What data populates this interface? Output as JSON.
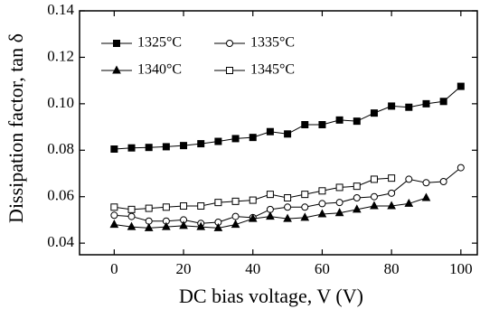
{
  "chart_data": {
    "type": "line",
    "x_label": "DC bias voltage, V (V)",
    "y_label": "Dissipation factor, tan δ",
    "xlim": [
      -10,
      105
    ],
    "xticks": [
      0,
      20,
      40,
      60,
      80,
      100
    ],
    "ylim": [
      0.035,
      0.14
    ],
    "yticks": [
      {
        "value": 0.04,
        "label": "0.04"
      },
      {
        "value": 0.06,
        "label": "0.06"
      },
      {
        "value": 0.08,
        "label": "0.08"
      },
      {
        "value": 0.1,
        "label": "0.10"
      },
      {
        "value": 0.12,
        "label": "0.12"
      },
      {
        "value": 0.14,
        "label": "0.14"
      }
    ],
    "series": [
      {
        "name": "1325°C",
        "color": "#000000",
        "marker": "square-filled",
        "x": [
          0,
          5,
          10,
          15,
          20,
          25,
          30,
          35,
          40,
          45,
          50,
          55,
          60,
          65,
          70,
          75,
          80,
          85,
          90,
          95,
          100
        ],
        "values": [
          0.0805,
          0.081,
          0.0812,
          0.0815,
          0.082,
          0.0828,
          0.0838,
          0.085,
          0.0855,
          0.088,
          0.087,
          0.091,
          0.091,
          0.093,
          0.0925,
          0.096,
          0.099,
          0.0985,
          0.1,
          0.101,
          0.1075
        ]
      },
      {
        "name": "1335°C",
        "color": "#000000",
        "marker": "circle-open",
        "x": [
          0,
          5,
          10,
          15,
          20,
          25,
          30,
          35,
          40,
          45,
          50,
          55,
          60,
          65,
          70,
          75,
          80,
          85,
          90,
          95,
          100
        ],
        "values": [
          0.052,
          0.0515,
          0.0495,
          0.0495,
          0.05,
          0.0485,
          0.049,
          0.0515,
          0.051,
          0.0545,
          0.0555,
          0.0555,
          0.057,
          0.0575,
          0.0595,
          0.06,
          0.0615,
          0.0675,
          0.066,
          0.0665,
          0.0725
        ]
      },
      {
        "name": "1340°C",
        "color": "#000000",
        "marker": "triangle-filled",
        "x": [
          0,
          5,
          10,
          15,
          20,
          25,
          30,
          35,
          40,
          45,
          50,
          55,
          60,
          65,
          70,
          75,
          80,
          85,
          90
        ],
        "values": [
          0.048,
          0.047,
          0.0465,
          0.047,
          0.0475,
          0.047,
          0.0465,
          0.048,
          0.0505,
          0.0515,
          0.0505,
          0.051,
          0.0525,
          0.053,
          0.0545,
          0.056,
          0.056,
          0.057,
          0.0595
        ]
      },
      {
        "name": "1345°C",
        "color": "#000000",
        "marker": "square-open",
        "x": [
          0,
          5,
          10,
          15,
          20,
          25,
          30,
          35,
          40,
          45,
          50,
          55,
          60,
          65,
          70,
          75,
          80
        ],
        "values": [
          0.0555,
          0.0545,
          0.055,
          0.0555,
          0.056,
          0.056,
          0.0575,
          0.058,
          0.0585,
          0.061,
          0.0595,
          0.061,
          0.0625,
          0.064,
          0.0645,
          0.0675,
          0.068
        ]
      }
    ]
  }
}
